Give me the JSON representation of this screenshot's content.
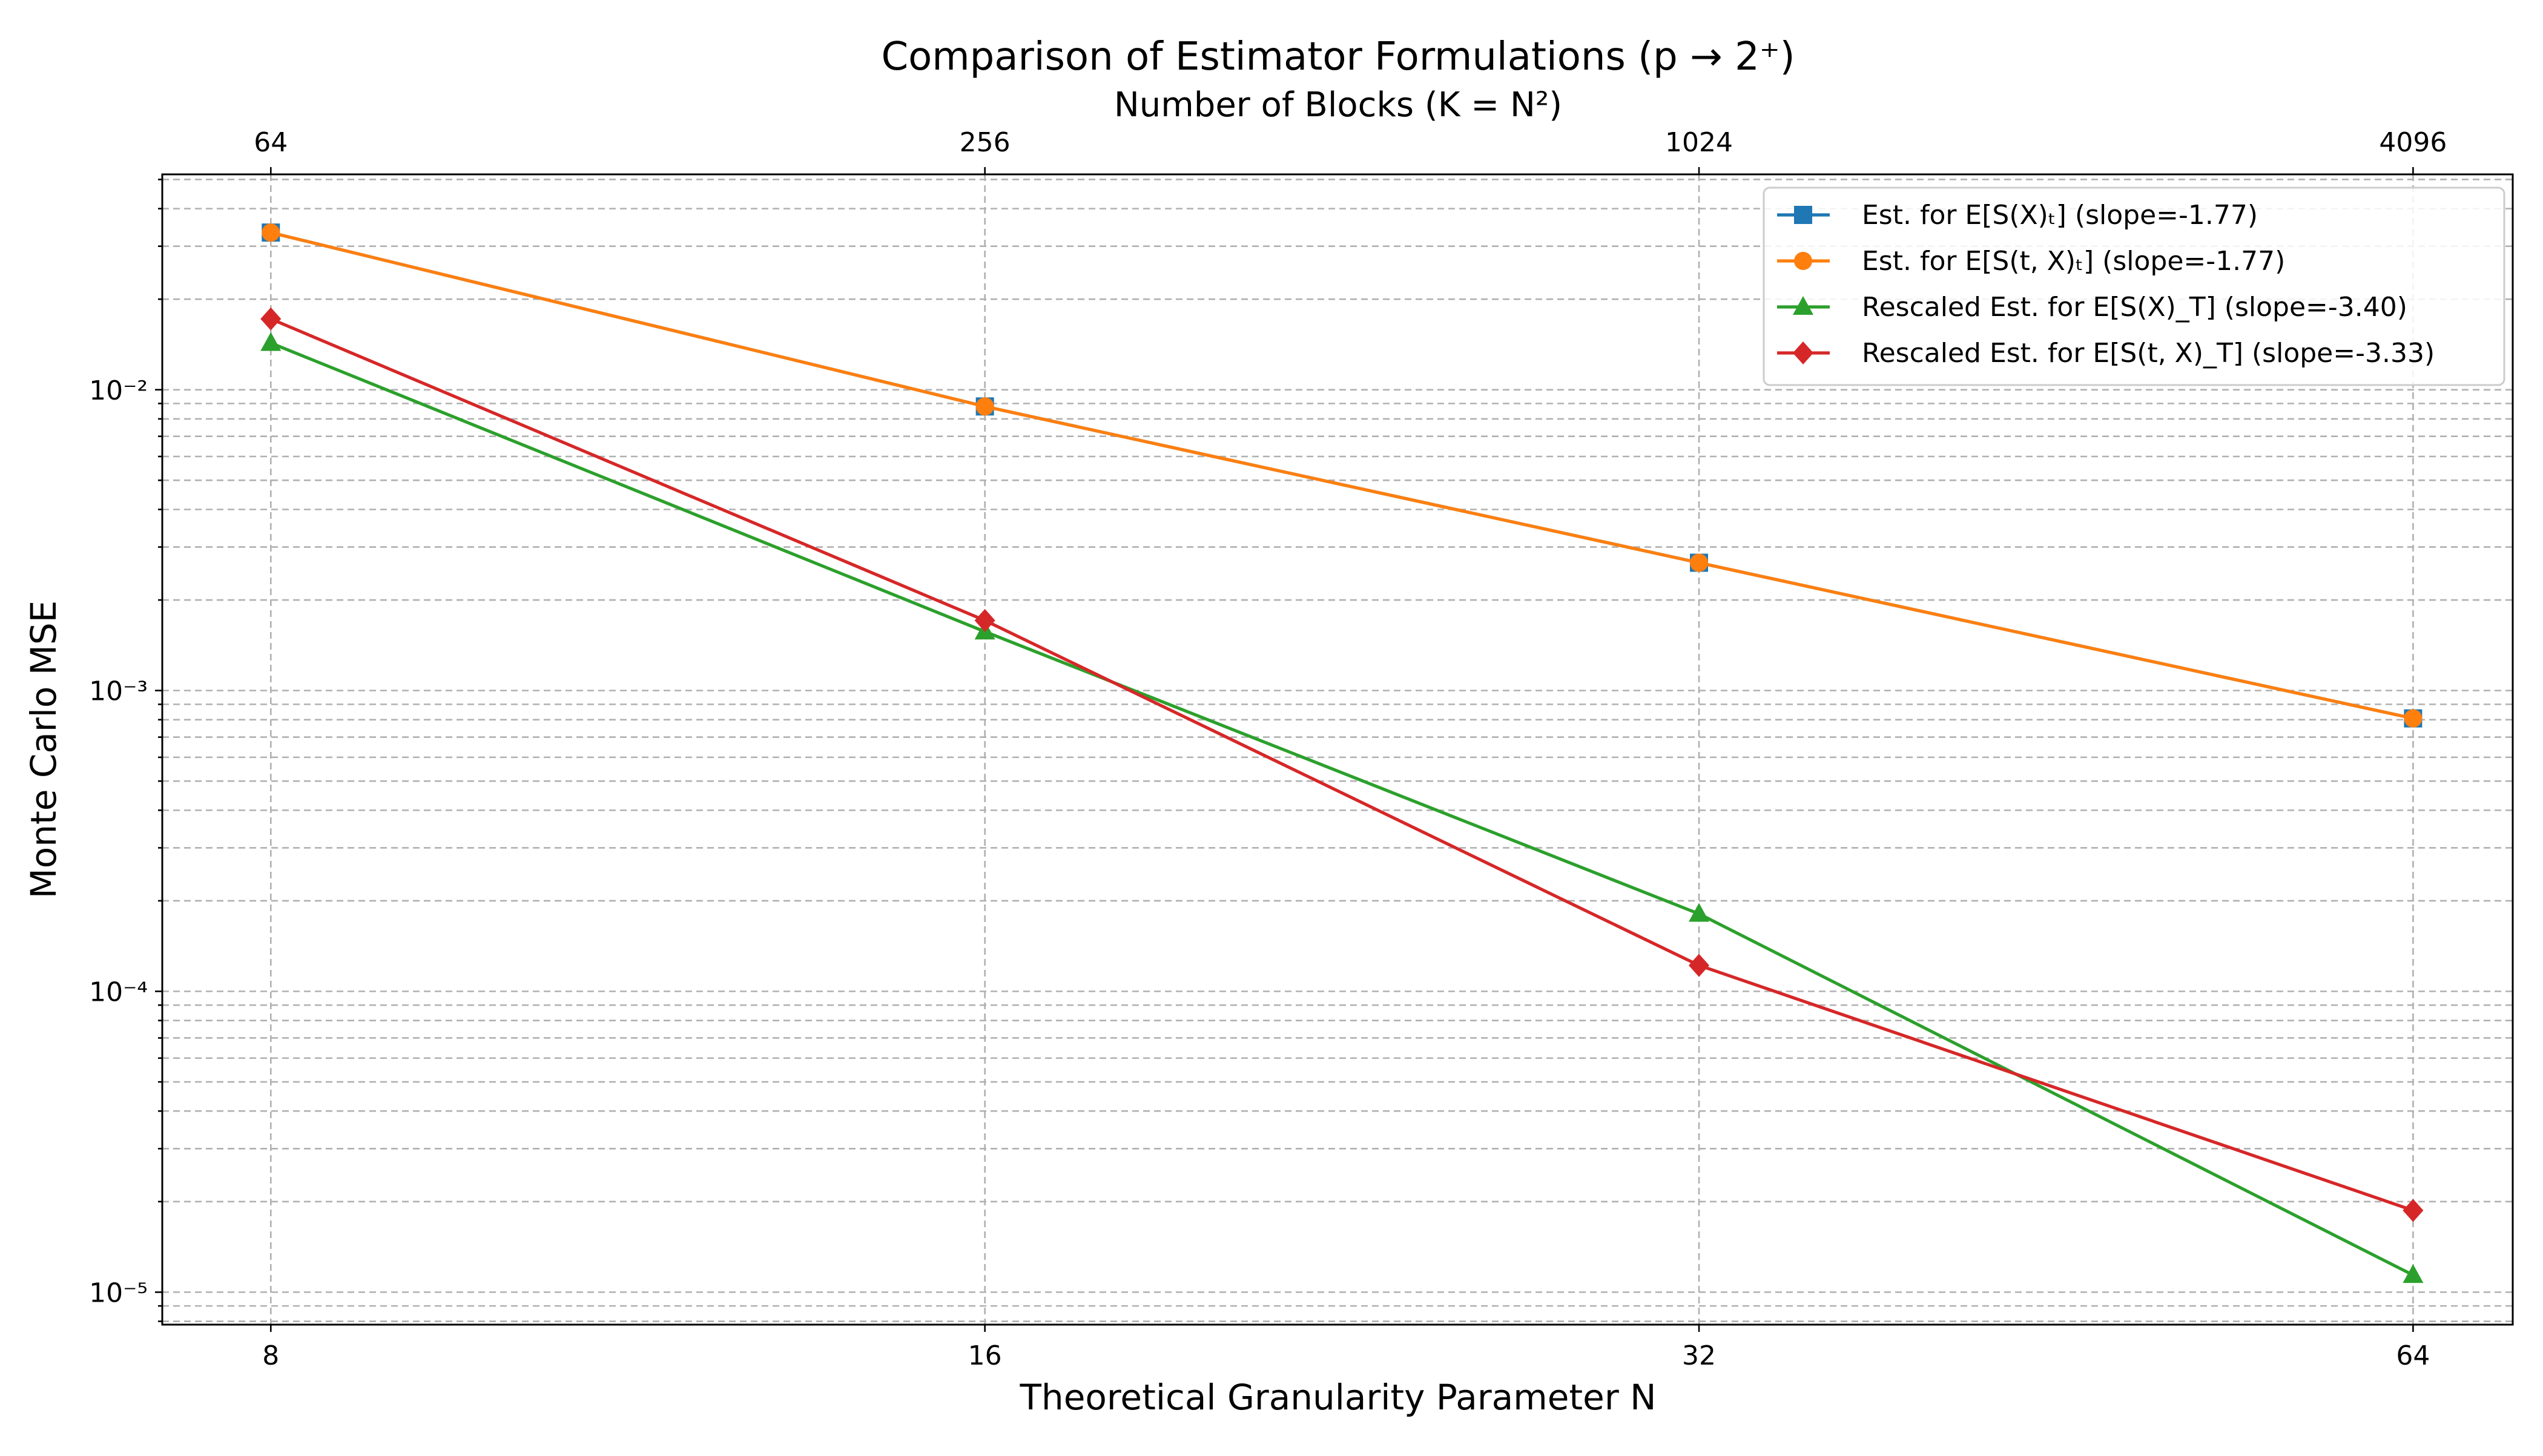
{
  "chart_data": {
    "type": "line",
    "title": "Comparison of Estimator Formulations (p → 2⁺)",
    "secondary_xlabel": "Number of Blocks (K = N²)",
    "xlabel": "Theoretical Granularity Parameter N",
    "ylabel": "Monte Carlo MSE",
    "x_scale": "log2",
    "y_scale": "log10",
    "x": [
      8,
      16,
      32,
      64
    ],
    "x_tick_labels": [
      "8",
      "16",
      "32",
      "64"
    ],
    "secondary_x_tick_labels": [
      "64",
      "256",
      "1024",
      "4096"
    ],
    "y_tick_labels": [
      "10⁻²",
      "10⁻³",
      "10⁻⁴",
      "10⁻⁵"
    ],
    "y_ticks": [
      0.01,
      0.001,
      0.0001,
      1e-05
    ],
    "xlim": [
      7.2,
      70.5
    ],
    "ylim": [
      7.8e-06,
      0.052
    ],
    "grid": true,
    "legend_position": "top-right",
    "series": [
      {
        "name": "Est. for E[S(X)ₜ] (slope=-1.77)",
        "color": "#1f77b4",
        "marker": "square",
        "values": [
          0.0333,
          0.0088,
          0.00266,
          0.000808
        ]
      },
      {
        "name": "Est. for E[S(t, X)ₜ] (slope=-1.77)",
        "color": "#ff7f0e",
        "marker": "circle",
        "values": [
          0.0333,
          0.0088,
          0.00266,
          0.000808
        ]
      },
      {
        "name": "Rescaled Est. for E[S(X)_T] (slope=-3.40)",
        "color": "#2ca02c",
        "marker": "triangle",
        "values": [
          0.0143,
          0.00157,
          0.000181,
          1.14e-05
        ]
      },
      {
        "name": "Rescaled Est. for E[S(t, X)_T] (slope=-3.33)",
        "color": "#d62728",
        "marker": "diamond",
        "values": [
          0.0172,
          0.00171,
          0.000122,
          1.87e-05
        ]
      }
    ]
  }
}
